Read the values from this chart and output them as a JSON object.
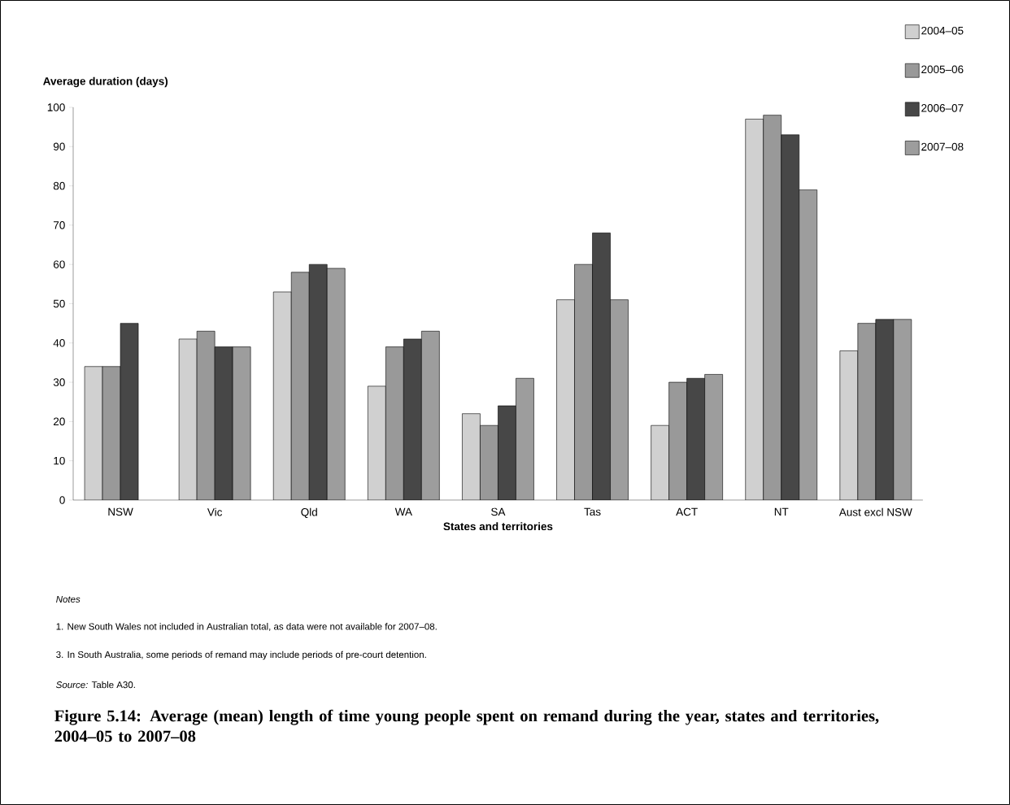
{
  "chart_data": {
    "type": "bar",
    "title": "Figure 5.14: Average (mean) length of time young people spent on remand during the year, states and territories, 2004–05 to 2007–08",
    "ylabel": "Average duration (days)",
    "xlabel": "States and territories",
    "categories": [
      "NSW",
      "Vic",
      "Qld",
      "WA",
      "SA",
      "Tas",
      "ACT",
      "NT",
      "Aust excl NSW"
    ],
    "series": [
      {
        "name": "2004–05",
        "color": "#d0d0d0",
        "values": [
          34,
          41,
          53,
          29,
          22,
          51,
          19,
          97,
          38
        ]
      },
      {
        "name": "2005–06",
        "color": "#999999",
        "values": [
          34,
          43,
          58,
          39,
          19,
          60,
          30,
          98,
          45
        ]
      },
      {
        "name": "2006–07",
        "color": "#474747",
        "values": [
          45,
          39,
          60,
          41,
          24,
          68,
          31,
          93,
          46
        ]
      },
      {
        "name": "2007–08",
        "color": "#9d9d9d",
        "values": [
          null,
          39,
          59,
          43,
          31,
          51,
          32,
          79,
          46
        ]
      }
    ],
    "ylim": [
      0,
      100
    ],
    "yticks": [
      0,
      10,
      20,
      30,
      40,
      50,
      60,
      70,
      80,
      90,
      100
    ],
    "legend": "top right",
    "annotations": [
      "*Notes*",
      "1.   New South Wales not included in Australian total, as data were not available for 2007–08.",
      "3.   In South Australia, some periods of remand may include periods of pre-court detention.",
      "*Source:* Table A30."
    ]
  }
}
